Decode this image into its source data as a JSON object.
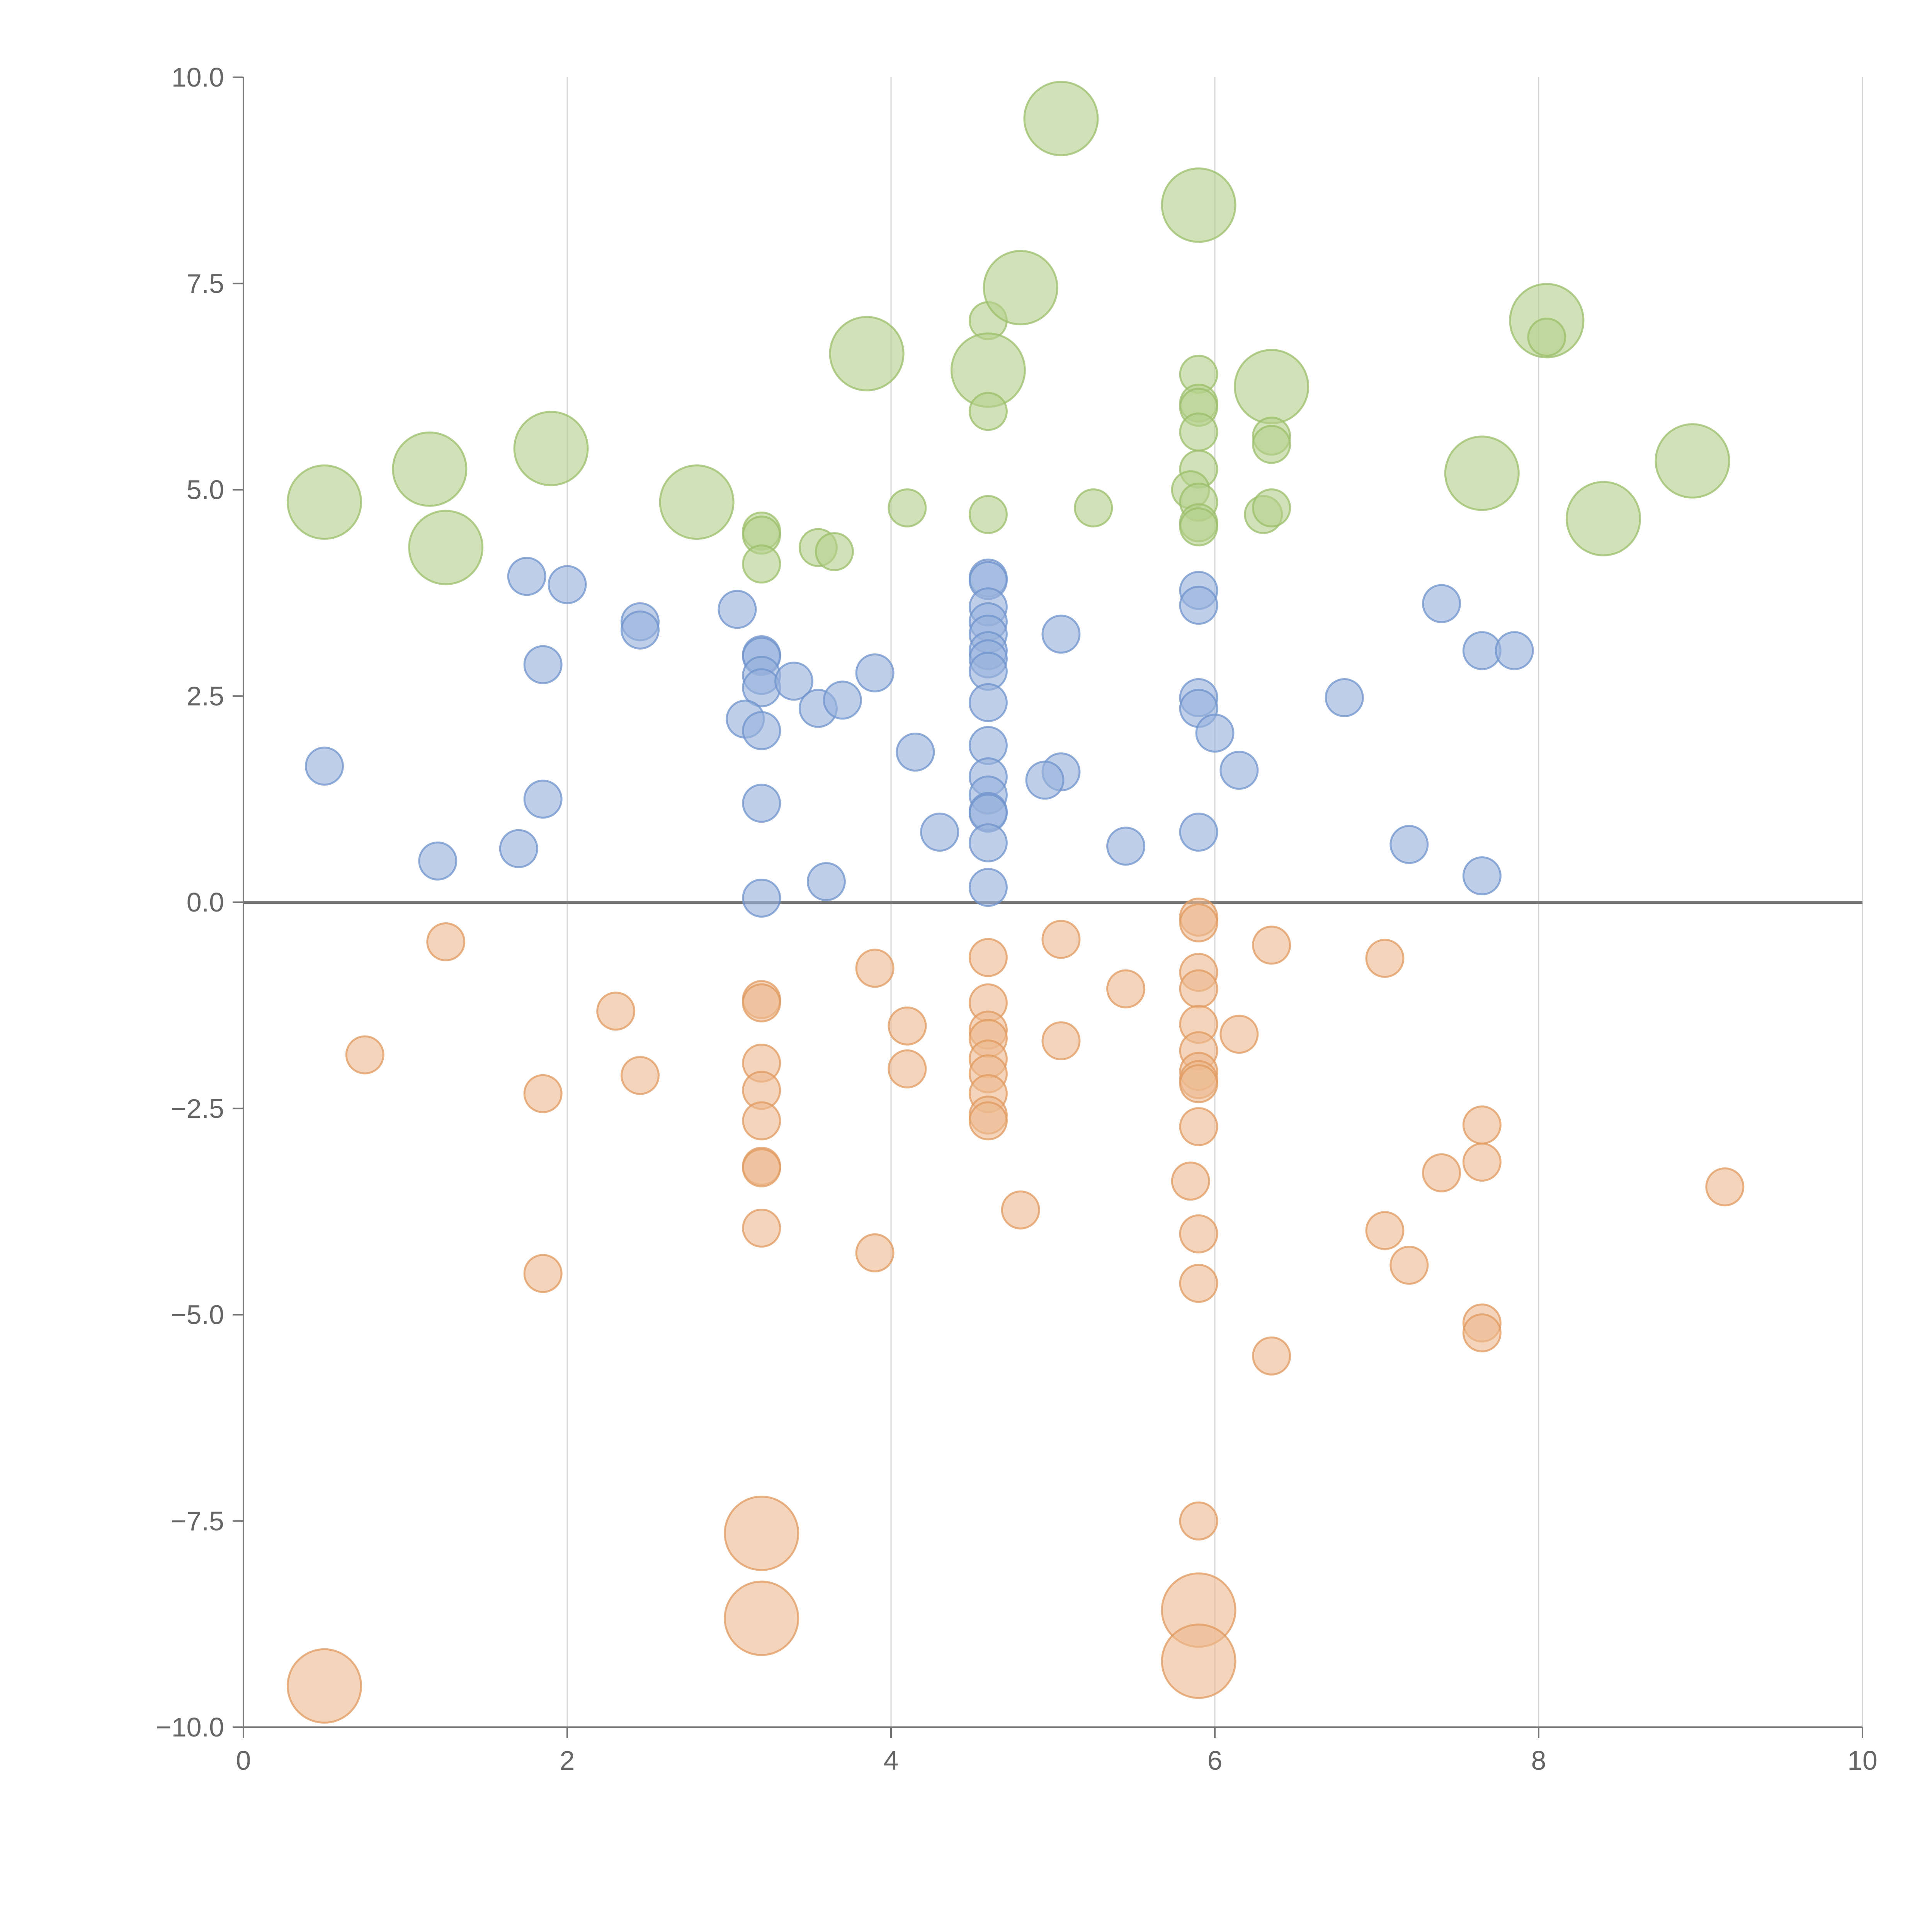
{
  "chart_data": {
    "type": "scatter",
    "title": "",
    "xlabel": "",
    "ylabel": "",
    "xlim": [
      0,
      10
    ],
    "ylim": [
      -10,
      10
    ],
    "x_ticks": [
      "0",
      "2",
      "4",
      "6",
      "8",
      "10"
    ],
    "x_tick_values": [
      0,
      2,
      4,
      6,
      8,
      10
    ],
    "y_ticks": [
      "10.0",
      "7.5",
      "5.0",
      "2.5",
      "0.0",
      "−2.5",
      "−5.0",
      "−7.5",
      "−10.0"
    ],
    "y_tick_values": [
      10,
      7.5,
      5,
      2.5,
      0,
      -2.5,
      -5,
      -7.5,
      -10
    ],
    "grid": "vertical",
    "reference_line_y": 0,
    "series_colors": {
      "green": {
        "fill": "#b5d08c",
        "stroke": "#9bbd6a"
      },
      "blue": {
        "fill": "#98b2dc",
        "stroke": "#6f93cc"
      },
      "orange": {
        "fill": "#eeb98f",
        "stroke": "#e09a5f"
      }
    },
    "size_scale": {
      "small": 1,
      "large": 2
    },
    "series": [
      {
        "color": "green",
        "points": [
          [
            0.5,
            4.85,
            2
          ],
          [
            1.15,
            5.25,
            2
          ],
          [
            1.25,
            4.3,
            2
          ],
          [
            1.9,
            5.5,
            2
          ],
          [
            2.8,
            4.85,
            2
          ],
          [
            3.2,
            4.5,
            1
          ],
          [
            3.2,
            4.45,
            1
          ],
          [
            3.2,
            4.1,
            1
          ],
          [
            3.55,
            4.3,
            1
          ],
          [
            3.65,
            4.25,
            1
          ],
          [
            3.85,
            6.65,
            2
          ],
          [
            4.1,
            4.78,
            1
          ],
          [
            4.6,
            7.05,
            1
          ],
          [
            4.6,
            6.45,
            2
          ],
          [
            4.6,
            5.95,
            1
          ],
          [
            4.6,
            4.7,
            1
          ],
          [
            4.8,
            7.45,
            2
          ],
          [
            5.05,
            9.5,
            2
          ],
          [
            5.25,
            4.78,
            1
          ],
          [
            5.9,
            8.45,
            2
          ],
          [
            5.9,
            6.4,
            1
          ],
          [
            5.9,
            6.05,
            1
          ],
          [
            5.9,
            6.0,
            1
          ],
          [
            5.9,
            5.7,
            1
          ],
          [
            5.9,
            5.25,
            1
          ],
          [
            5.85,
            5.0,
            1
          ],
          [
            5.9,
            4.85,
            1
          ],
          [
            5.9,
            4.6,
            1
          ],
          [
            5.9,
            4.55,
            1
          ],
          [
            6.35,
            6.25,
            2
          ],
          [
            6.35,
            5.65,
            1
          ],
          [
            6.35,
            5.55,
            1
          ],
          [
            6.3,
            4.7,
            1
          ],
          [
            6.35,
            4.78,
            1
          ],
          [
            7.65,
            5.2,
            2
          ],
          [
            8.05,
            7.05,
            2
          ],
          [
            8.05,
            6.85,
            1
          ],
          [
            8.4,
            4.65,
            2
          ],
          [
            8.95,
            5.35,
            2
          ]
        ]
      },
      {
        "color": "blue",
        "points": [
          [
            0.5,
            1.65,
            1
          ],
          [
            1.2,
            0.5,
            1
          ],
          [
            1.75,
            3.95,
            1
          ],
          [
            1.85,
            2.88,
            1
          ],
          [
            1.85,
            1.25,
            1
          ],
          [
            1.7,
            0.65,
            1
          ],
          [
            2.0,
            3.85,
            1
          ],
          [
            2.45,
            3.4,
            1
          ],
          [
            2.45,
            3.3,
            1
          ],
          [
            3.05,
            3.55,
            1
          ],
          [
            3.2,
            3.0,
            1
          ],
          [
            3.2,
            2.98,
            1
          ],
          [
            3.2,
            2.75,
            1
          ],
          [
            3.2,
            2.6,
            1
          ],
          [
            3.1,
            2.22,
            1
          ],
          [
            3.2,
            2.08,
            1
          ],
          [
            3.2,
            1.2,
            1
          ],
          [
            3.2,
            0.05,
            1
          ],
          [
            3.4,
            2.68,
            1
          ],
          [
            3.55,
            2.35,
            1
          ],
          [
            3.7,
            2.45,
            1
          ],
          [
            3.9,
            2.78,
            1
          ],
          [
            3.6,
            0.25,
            1
          ],
          [
            4.15,
            1.82,
            1
          ],
          [
            4.3,
            0.85,
            1
          ],
          [
            4.6,
            3.93,
            1
          ],
          [
            4.6,
            3.9,
            1
          ],
          [
            4.6,
            3.58,
            1
          ],
          [
            4.6,
            3.4,
            1
          ],
          [
            4.6,
            3.25,
            1
          ],
          [
            4.6,
            3.05,
            1
          ],
          [
            4.6,
            2.95,
            1
          ],
          [
            4.6,
            2.8,
            1
          ],
          [
            4.6,
            2.42,
            1
          ],
          [
            4.6,
            1.9,
            1
          ],
          [
            4.6,
            1.52,
            1
          ],
          [
            4.6,
            1.3,
            1
          ],
          [
            4.6,
            1.1,
            1
          ],
          [
            4.6,
            1.08,
            1
          ],
          [
            4.6,
            0.72,
            1
          ],
          [
            4.6,
            0.18,
            1
          ],
          [
            5.05,
            3.25,
            1
          ],
          [
            5.05,
            1.58,
            1
          ],
          [
            4.95,
            1.48,
            1
          ],
          [
            5.45,
            0.68,
            1
          ],
          [
            5.9,
            3.78,
            1
          ],
          [
            5.9,
            3.6,
            1
          ],
          [
            5.9,
            2.48,
            1
          ],
          [
            5.9,
            2.35,
            1
          ],
          [
            6.0,
            2.05,
            1
          ],
          [
            6.15,
            1.6,
            1
          ],
          [
            5.9,
            0.85,
            1
          ],
          [
            6.8,
            2.48,
            1
          ],
          [
            7.2,
            0.7,
            1
          ],
          [
            7.4,
            3.62,
            1
          ],
          [
            7.65,
            3.05,
            1
          ],
          [
            7.85,
            3.05,
            1
          ],
          [
            7.65,
            0.32,
            1
          ]
        ]
      },
      {
        "color": "orange",
        "points": [
          [
            0.5,
            -9.5,
            2
          ],
          [
            0.75,
            -1.85,
            1
          ],
          [
            1.25,
            -0.48,
            1
          ],
          [
            1.85,
            -2.32,
            1
          ],
          [
            1.85,
            -4.5,
            1
          ],
          [
            2.3,
            -1.32,
            1
          ],
          [
            2.45,
            -2.1,
            1
          ],
          [
            3.2,
            -1.18,
            1
          ],
          [
            3.2,
            -1.22,
            1
          ],
          [
            3.2,
            -1.95,
            1
          ],
          [
            3.2,
            -2.28,
            1
          ],
          [
            3.2,
            -2.65,
            1
          ],
          [
            3.2,
            -3.2,
            1
          ],
          [
            3.2,
            -3.22,
            1
          ],
          [
            3.2,
            -3.95,
            1
          ],
          [
            3.2,
            -7.65,
            2
          ],
          [
            3.2,
            -8.68,
            2
          ],
          [
            3.9,
            -0.8,
            1
          ],
          [
            3.9,
            -4.25,
            1
          ],
          [
            4.1,
            -1.5,
            1
          ],
          [
            4.1,
            -2.02,
            1
          ],
          [
            4.6,
            -0.67,
            1
          ],
          [
            4.6,
            -1.22,
            1
          ],
          [
            4.6,
            -1.55,
            1
          ],
          [
            4.6,
            -1.65,
            1
          ],
          [
            4.6,
            -1.9,
            1
          ],
          [
            4.6,
            -2.08,
            1
          ],
          [
            4.6,
            -2.32,
            1
          ],
          [
            4.6,
            -2.58,
            1
          ],
          [
            4.6,
            -2.65,
            1
          ],
          [
            4.8,
            -3.73,
            1
          ],
          [
            5.05,
            -0.45,
            1
          ],
          [
            5.05,
            -1.68,
            1
          ],
          [
            5.45,
            -1.05,
            1
          ],
          [
            5.9,
            -0.18,
            1
          ],
          [
            5.9,
            -0.25,
            1
          ],
          [
            5.9,
            -0.85,
            1
          ],
          [
            5.9,
            -1.05,
            1
          ],
          [
            5.9,
            -1.48,
            1
          ],
          [
            5.9,
            -1.8,
            1
          ],
          [
            5.9,
            -2.05,
            1
          ],
          [
            5.9,
            -2.15,
            1
          ],
          [
            5.9,
            -2.2,
            1
          ],
          [
            5.9,
            -2.72,
            1
          ],
          [
            5.85,
            -3.38,
            1
          ],
          [
            5.9,
            -4.02,
            1
          ],
          [
            5.9,
            -4.62,
            1
          ],
          [
            5.9,
            -7.5,
            1
          ],
          [
            5.9,
            -8.58,
            2
          ],
          [
            5.9,
            -9.2,
            2
          ],
          [
            6.15,
            -1.6,
            1
          ],
          [
            6.35,
            -0.52,
            1
          ],
          [
            6.35,
            -5.5,
            1
          ],
          [
            7.05,
            -0.68,
            1
          ],
          [
            7.05,
            -3.98,
            1
          ],
          [
            7.2,
            -4.4,
            1
          ],
          [
            7.4,
            -3.28,
            1
          ],
          [
            7.65,
            -2.7,
            1
          ],
          [
            7.65,
            -3.15,
            1
          ],
          [
            7.65,
            -5.1,
            1
          ],
          [
            7.65,
            -5.22,
            1
          ],
          [
            9.15,
            -3.45,
            1
          ]
        ]
      }
    ]
  }
}
